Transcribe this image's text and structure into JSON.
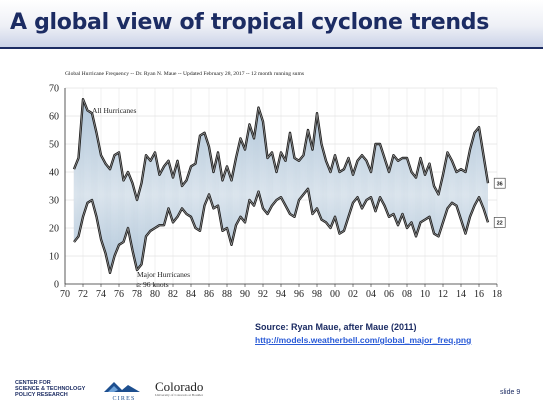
{
  "slide": {
    "title": "A global view of tropical cyclone trends",
    "source_label": "Source: Ryan Maue, after Maue (2011)",
    "source_url": "http://models.weatherbell.com/global_major_freq.png",
    "slide_number": "slide 9",
    "logos": {
      "cstpr_line1": "CENTER FOR",
      "cstpr_line2": "SCIENCE & TECHNOLOGY",
      "cstpr_line3": "POLICY RESEARCH",
      "cires": "CIRES",
      "colorado": "Colorado",
      "colorado_sub": "University of Colorado at Boulder"
    }
  },
  "chart_data": {
    "type": "line",
    "title": "Global Hurricane Frequency -- Dr. Ryan N. Maue -- Updated February 28, 2017 -- 12 month running sums",
    "xlabel": "",
    "ylabel": "",
    "xlim": [
      1970,
      2018
    ],
    "ylim": [
      0,
      70
    ],
    "x_ticks": [
      1970,
      1972,
      1974,
      1976,
      1978,
      1980,
      1982,
      1984,
      1986,
      1988,
      1990,
      1992,
      1994,
      1996,
      1998,
      2000,
      2002,
      2004,
      2006,
      2008,
      2010,
      2012,
      2014,
      2016,
      2018
    ],
    "x_tick_labels": [
      "70",
      "72",
      "74",
      "76",
      "78",
      "80",
      "82",
      "84",
      "86",
      "88",
      "90",
      "92",
      "94",
      "96",
      "98",
      "00",
      "02",
      "04",
      "06",
      "08",
      "10",
      "12",
      "14",
      "16",
      "18"
    ],
    "y_ticks": [
      0,
      10,
      20,
      30,
      40,
      50,
      60,
      70
    ],
    "y_tick_labels": [
      "0",
      "10",
      "20",
      "30",
      "40",
      "50",
      "60",
      "70"
    ],
    "grid": true,
    "fill_between": true,
    "line_color": "#222222",
    "fill_colors": [
      "#b8cde0",
      "#ffffff"
    ],
    "series": [
      {
        "name": "All Hurricanes",
        "x": [
          1971.0,
          1971.5,
          1972.0,
          1972.5,
          1973.0,
          1973.5,
          1974.0,
          1974.5,
          1975.0,
          1975.5,
          1976.0,
          1976.5,
          1977.0,
          1977.5,
          1978.0,
          1978.5,
          1979.0,
          1979.5,
          1980.0,
          1980.5,
          1981.0,
          1981.5,
          1982.0,
          1982.5,
          1983.0,
          1983.5,
          1984.0,
          1984.5,
          1985.0,
          1985.5,
          1986.0,
          1986.5,
          1987.0,
          1987.5,
          1988.0,
          1988.5,
          1989.0,
          1989.5,
          1990.0,
          1990.5,
          1991.0,
          1991.5,
          1992.0,
          1992.5,
          1993.0,
          1993.5,
          1994.0,
          1994.5,
          1995.0,
          1995.5,
          1996.0,
          1996.5,
          1997.0,
          1997.5,
          1998.0,
          1998.5,
          1999.0,
          1999.5,
          2000.0,
          2000.5,
          2001.0,
          2001.5,
          2002.0,
          2002.5,
          2003.0,
          2003.5,
          2004.0,
          2004.5,
          2005.0,
          2005.5,
          2006.0,
          2006.5,
          2007.0,
          2007.5,
          2008.0,
          2008.5,
          2009.0,
          2009.5,
          2010.0,
          2010.5,
          2011.0,
          2011.5,
          2012.0,
          2012.5,
          2013.0,
          2013.5,
          2014.0,
          2014.5,
          2015.0,
          2015.5,
          2016.0,
          2016.5,
          2017.0
        ],
        "y": [
          41,
          45,
          66,
          62,
          61,
          54,
          46,
          43,
          41,
          46,
          47,
          37,
          40,
          36,
          30,
          36,
          46,
          44,
          47,
          39,
          42,
          44,
          38,
          44,
          35,
          37,
          42,
          43,
          53,
          54,
          49,
          40,
          47,
          37,
          42,
          37,
          45,
          52,
          48,
          57,
          52,
          63,
          58,
          45,
          47,
          40,
          47,
          44,
          54,
          45,
          44,
          46,
          55,
          48,
          61,
          50,
          44,
          40,
          46,
          40,
          41,
          45,
          39,
          44,
          46,
          44,
          40,
          50,
          50,
          45,
          40,
          46,
          44,
          45,
          45,
          40,
          38,
          45,
          39,
          43,
          35,
          32,
          39,
          47,
          44,
          40,
          41,
          40,
          48,
          54,
          56,
          46,
          36
        ]
      },
      {
        "name": "Major Hurricanes ≥ 96 knots",
        "x": [
          1971.0,
          1971.5,
          1972.0,
          1972.5,
          1973.0,
          1973.5,
          1974.0,
          1974.5,
          1975.0,
          1975.5,
          1976.0,
          1976.5,
          1977.0,
          1977.5,
          1978.0,
          1978.5,
          1979.0,
          1979.5,
          1980.0,
          1980.5,
          1981.0,
          1981.5,
          1982.0,
          1982.5,
          1983.0,
          1983.5,
          1984.0,
          1984.5,
          1985.0,
          1985.5,
          1986.0,
          1986.5,
          1987.0,
          1987.5,
          1988.0,
          1988.5,
          1989.0,
          1989.5,
          1990.0,
          1990.5,
          1991.0,
          1991.5,
          1992.0,
          1992.5,
          1993.0,
          1993.5,
          1994.0,
          1994.5,
          1995.0,
          1995.5,
          1996.0,
          1996.5,
          1997.0,
          1997.5,
          1998.0,
          1998.5,
          1999.0,
          1999.5,
          2000.0,
          2000.5,
          2001.0,
          2001.5,
          2002.0,
          2002.5,
          2003.0,
          2003.5,
          2004.0,
          2004.5,
          2005.0,
          2005.5,
          2006.0,
          2006.5,
          2007.0,
          2007.5,
          2008.0,
          2008.5,
          2009.0,
          2009.5,
          2010.0,
          2010.5,
          2011.0,
          2011.5,
          2012.0,
          2012.5,
          2013.0,
          2013.5,
          2014.0,
          2014.5,
          2015.0,
          2015.5,
          2016.0,
          2016.5,
          2017.0
        ],
        "y": [
          15,
          17,
          24,
          29,
          30,
          24,
          16,
          11,
          4,
          10,
          14,
          15,
          20,
          12,
          5,
          7,
          17,
          19,
          20,
          21,
          21,
          27,
          22,
          24,
          27,
          25,
          24,
          20,
          19,
          28,
          32,
          27,
          28,
          19,
          20,
          14,
          21,
          24,
          22,
          30,
          28,
          33,
          27,
          25,
          28,
          30,
          31,
          28,
          25,
          24,
          30,
          32,
          34,
          25,
          27,
          23,
          22,
          20,
          24,
          18,
          19,
          24,
          29,
          31,
          27,
          30,
          31,
          26,
          31,
          28,
          24,
          25,
          21,
          25,
          20,
          22,
          17,
          22,
          23,
          24,
          18,
          17,
          22,
          27,
          29,
          28,
          23,
          18,
          24,
          28,
          31,
          27,
          22
        ]
      }
    ],
    "annotations": [
      {
        "text": "All Hurricanes",
        "x": 1973.0,
        "y": 61
      },
      {
        "text": "Major Hurricanes",
        "x": 1978.0,
        "y": 2.5
      },
      {
        "text": "≥ 96 knots",
        "x": 1978.0,
        "y": -1.0
      }
    ],
    "end_labels": [
      {
        "text": "36",
        "x": 2017.8,
        "y": 36
      },
      {
        "text": "22",
        "x": 2017.8,
        "y": 22
      }
    ]
  }
}
